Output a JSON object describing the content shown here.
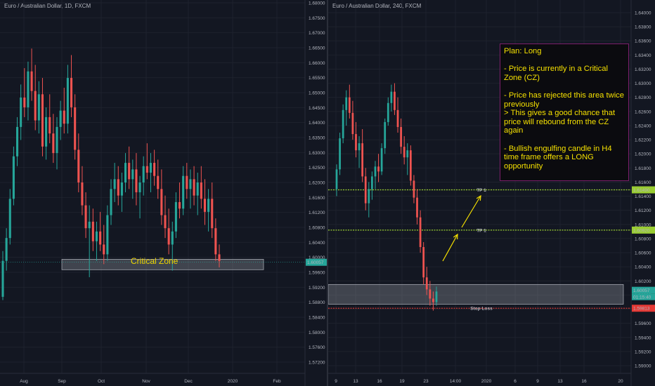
{
  "left_chart": {
    "title": "Euro / Australian Dollar, 1D, FXCM",
    "zone_label": "Critical Zone",
    "price_tag": "1.60057",
    "chart_data": {
      "type": "candlestick",
      "title": "Euro / Australian Dollar, 1D, FXCM",
      "y_ticks": [
        "1.68000",
        "1.67500",
        "1.67000",
        "1.66500",
        "1.66000",
        "1.65500",
        "1.65000",
        "1.64500",
        "1.64000",
        "1.63500",
        "1.63000",
        "1.62500",
        "1.62000",
        "1.61600",
        "1.61200",
        "1.60800",
        "1.60400",
        "1.60000",
        "1.59600",
        "1.59200",
        "1.58800",
        "1.58400",
        "1.58000",
        "1.57600",
        "1.57200"
      ],
      "x_ticks": [
        "Aug",
        "Sep",
        "Oct",
        "Nov",
        "Dec",
        "2020",
        "Feb"
      ],
      "ylim": [
        1.57,
        1.68
      ],
      "critical_zone": [
        1.5983,
        1.6015
      ],
      "current_price": 1.60057,
      "candles": [
        [
          1.59,
          1.604,
          1.589,
          1.601
        ],
        [
          1.601,
          1.611,
          1.598,
          1.608
        ],
        [
          1.608,
          1.623,
          1.606,
          1.62
        ],
        [
          1.62,
          1.636,
          1.618,
          1.633
        ],
        [
          1.633,
          1.645,
          1.63,
          1.642
        ],
        [
          1.642,
          1.655,
          1.638,
          1.651
        ],
        [
          1.651,
          1.66,
          1.645,
          1.648
        ],
        [
          1.648,
          1.662,
          1.644,
          1.659
        ],
        [
          1.659,
          1.666,
          1.65,
          1.653
        ],
        [
          1.653,
          1.661,
          1.641,
          1.644
        ],
        [
          1.644,
          1.656,
          1.64,
          1.652
        ],
        [
          1.652,
          1.657,
          1.633,
          1.636
        ],
        [
          1.636,
          1.648,
          1.632,
          1.645
        ],
        [
          1.645,
          1.652,
          1.637,
          1.64
        ],
        [
          1.64,
          1.646,
          1.631,
          1.634
        ],
        [
          1.634,
          1.645,
          1.629,
          1.642
        ],
        [
          1.642,
          1.65,
          1.638,
          1.647
        ],
        [
          1.647,
          1.654,
          1.64,
          1.643
        ],
        [
          1.643,
          1.661,
          1.64,
          1.657
        ],
        [
          1.657,
          1.664,
          1.645,
          1.648
        ],
        [
          1.648,
          1.652,
          1.632,
          1.635
        ],
        [
          1.635,
          1.64,
          1.622,
          1.625
        ],
        [
          1.625,
          1.63,
          1.615,
          1.618
        ],
        [
          1.618,
          1.622,
          1.608,
          1.611
        ],
        [
          1.611,
          1.618,
          1.596,
          1.613
        ],
        [
          1.613,
          1.617,
          1.604,
          1.607
        ],
        [
          1.607,
          1.613,
          1.601,
          1.61
        ],
        [
          1.61,
          1.616,
          1.604,
          1.606
        ],
        [
          1.606,
          1.612,
          1.6,
          1.603
        ],
        [
          1.603,
          1.618,
          1.601,
          1.615
        ],
        [
          1.615,
          1.626,
          1.612,
          1.623
        ],
        [
          1.623,
          1.631,
          1.619,
          1.626
        ],
        [
          1.626,
          1.63,
          1.618,
          1.621
        ],
        [
          1.621,
          1.628,
          1.616,
          1.625
        ],
        [
          1.625,
          1.634,
          1.622,
          1.631
        ],
        [
          1.631,
          1.636,
          1.623,
          1.626
        ],
        [
          1.626,
          1.632,
          1.62,
          1.629
        ],
        [
          1.629,
          1.634,
          1.618,
          1.622
        ],
        [
          1.622,
          1.627,
          1.614,
          1.625
        ],
        [
          1.625,
          1.633,
          1.621,
          1.63
        ],
        [
          1.63,
          1.637,
          1.626,
          1.628
        ],
        [
          1.628,
          1.634,
          1.622,
          1.631
        ],
        [
          1.631,
          1.635,
          1.624,
          1.627
        ],
        [
          1.627,
          1.632,
          1.62,
          1.623
        ],
        [
          1.623,
          1.629,
          1.612,
          1.615
        ],
        [
          1.615,
          1.621,
          1.608,
          1.611
        ],
        [
          1.611,
          1.617,
          1.603,
          1.606
        ],
        [
          1.606,
          1.613,
          1.598,
          1.61
        ],
        [
          1.61,
          1.622,
          1.608,
          1.619
        ],
        [
          1.619,
          1.625,
          1.614,
          1.617
        ],
        [
          1.617,
          1.63,
          1.615,
          1.627
        ],
        [
          1.627,
          1.631,
          1.62,
          1.623
        ],
        [
          1.623,
          1.629,
          1.617,
          1.626
        ],
        [
          1.626,
          1.63,
          1.618,
          1.621
        ],
        [
          1.621,
          1.628,
          1.615,
          1.625
        ],
        [
          1.625,
          1.63,
          1.617,
          1.62
        ],
        [
          1.62,
          1.626,
          1.612,
          1.616
        ],
        [
          1.616,
          1.623,
          1.61,
          1.62
        ],
        [
          1.62,
          1.625,
          1.608,
          1.611
        ],
        [
          1.611,
          1.614,
          1.601,
          1.603
        ],
        [
          1.603,
          1.606,
          1.599,
          1.601
        ]
      ]
    }
  },
  "right_chart": {
    "title": "Euro / Australian Dollar, 240, FXCM",
    "plan_lines": [
      "Plan: Long",
      "",
      "- Price is currently in a Critical Zone (CZ)",
      "",
      "- Price has rejected this area twice previously",
      "> This gives a good chance that price will rebound from the CZ again",
      "",
      "- Bullish engulfing candle in H4 time frame offers a LONG opportunity"
    ],
    "tp1_label": "TP 1",
    "tp2_label": "TP 1",
    "stop_label": "Stop Loss",
    "tags": {
      "tp1": "1.61490",
      "tp2": "1.60920",
      "current": "1.60057",
      "countdown": "01:15:40",
      "stop": "1.59813"
    },
    "chart_data": {
      "type": "candlestick",
      "title": "Euro / Australian Dollar, 240, FXCM",
      "y_ticks": [
        "1.64000",
        "1.63800",
        "1.63600",
        "1.63400",
        "1.63200",
        "1.63000",
        "1.62800",
        "1.62600",
        "1.62400",
        "1.62200",
        "1.62000",
        "1.61800",
        "1.61600",
        "1.61400",
        "1.61200",
        "1.61000",
        "1.60800",
        "1.60600",
        "1.60400",
        "1.60200",
        "1.60000",
        "1.59800",
        "1.59600",
        "1.59400",
        "1.59200",
        "1.59000"
      ],
      "x_ticks": [
        "9",
        "13",
        "16",
        "19",
        "23",
        "14:00",
        "2020",
        "6",
        "9",
        "13",
        "16",
        "20"
      ],
      "ylim": [
        1.589,
        1.641
      ],
      "levels": {
        "tp1": 1.6149,
        "tp2": 1.6092,
        "stop": 1.59813
      },
      "critical_zone": [
        1.5987,
        1.6015
      ],
      "current_price": 1.60057,
      "candles": [
        [
          1.615,
          1.6185,
          1.614,
          1.6178
        ],
        [
          1.6178,
          1.623,
          1.617,
          1.6222
        ],
        [
          1.6222,
          1.627,
          1.6215,
          1.6262
        ],
        [
          1.6262,
          1.629,
          1.624,
          1.628
        ],
        [
          1.628,
          1.6298,
          1.625,
          1.6258
        ],
        [
          1.6258,
          1.6275,
          1.622,
          1.6228
        ],
        [
          1.6228,
          1.6245,
          1.6195,
          1.6205
        ],
        [
          1.6205,
          1.6225,
          1.618,
          1.6215
        ],
        [
          1.6215,
          1.6235,
          1.616,
          1.6168
        ],
        [
          1.6168,
          1.618,
          1.612,
          1.613
        ],
        [
          1.613,
          1.616,
          1.611,
          1.615
        ],
        [
          1.615,
          1.6175,
          1.6135,
          1.6168
        ],
        [
          1.6168,
          1.619,
          1.615,
          1.6182
        ],
        [
          1.6182,
          1.62,
          1.616,
          1.6175
        ],
        [
          1.6175,
          1.6215,
          1.617,
          1.6208
        ],
        [
          1.6208,
          1.625,
          1.62,
          1.6245
        ],
        [
          1.6245,
          1.628,
          1.624,
          1.6272
        ],
        [
          1.6272,
          1.6298,
          1.626,
          1.6288
        ],
        [
          1.6288,
          1.63,
          1.6255,
          1.6262
        ],
        [
          1.6262,
          1.628,
          1.623,
          1.6238
        ],
        [
          1.6238,
          1.625,
          1.62,
          1.621
        ],
        [
          1.621,
          1.6225,
          1.6185,
          1.6195
        ],
        [
          1.6195,
          1.6215,
          1.617,
          1.6205
        ],
        [
          1.6205,
          1.6212,
          1.6155,
          1.6162
        ],
        [
          1.6162,
          1.617,
          1.613,
          1.6138
        ],
        [
          1.6138,
          1.615,
          1.61,
          1.611
        ],
        [
          1.611,
          1.612,
          1.606,
          1.6068
        ],
        [
          1.6068,
          1.6075,
          1.6015,
          1.6025
        ],
        [
          1.6025,
          1.604,
          1.6,
          1.6008
        ],
        [
          1.6008,
          1.602,
          1.5985,
          1.5995
        ],
        [
          1.5995,
          1.6005,
          1.5978,
          1.599
        ],
        [
          1.599,
          1.6012,
          1.5985,
          1.6005
        ]
      ]
    }
  }
}
